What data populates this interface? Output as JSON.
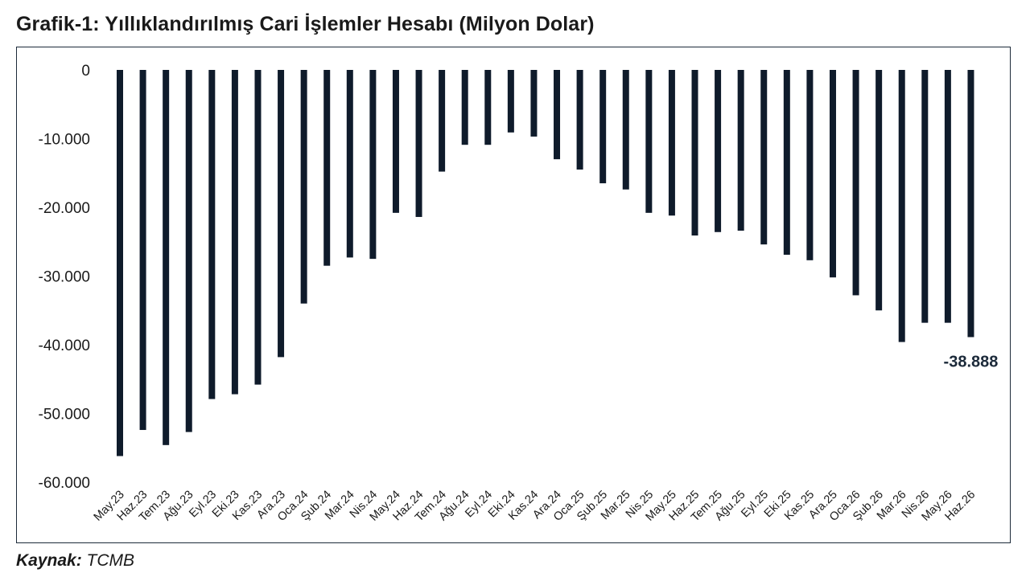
{
  "chart_data": {
    "type": "bar",
    "title": "Grafik-1: Yıllıklandırılmış Cari İşlemler Hesabı (Milyon Dolar)",
    "source_label": "Kaynak:",
    "source_value": "TCMB",
    "categories": [
      "May.23",
      "Haz.23",
      "Tem.23",
      "Ağu.23",
      "Eyl.23",
      "Eki.23",
      "Kas.23",
      "Ara.23",
      "Oca.24",
      "Şub.24",
      "Mar.24",
      "Nis.24",
      "May.24",
      "Haz.24",
      "Tem.24",
      "Ağu.24",
      "Eyl.24",
      "Eki.24",
      "Kas.24",
      "Ara.24",
      "Oca.25",
      "Şub.25",
      "Mar.25",
      "Nis.25",
      "May.25",
      "Haz.25",
      "Tem.25",
      "Ağu.25",
      "Eyl.25",
      "Eki.25",
      "Kas.25",
      "Ara.25",
      "Oca.26",
      "Şub.26",
      "Mar.26",
      "Nis.26",
      "May.26",
      "Haz.26"
    ],
    "values": [
      -56200,
      -52400,
      -54600,
      -52700,
      -47900,
      -47200,
      -45800,
      -41800,
      -34000,
      -28500,
      -27300,
      -27500,
      -20800,
      -21400,
      -14800,
      -10900,
      -10900,
      -9100,
      -9700,
      -13000,
      -14500,
      -16500,
      -17400,
      -20800,
      -21200,
      -24100,
      -23600,
      -23400,
      -25400,
      -26900,
      -27700,
      -30200,
      -32800,
      -35000,
      -39600,
      -36800,
      -36800,
      -38888
    ],
    "ylim": [
      -60000,
      0
    ],
    "yticks": [
      0,
      -10000,
      -20000,
      -30000,
      -40000,
      -50000,
      -60000
    ],
    "ytick_labels": [
      "0",
      "-10.000",
      "-20.000",
      "-30.000",
      "-40.000",
      "-50.000",
      "-60.000"
    ],
    "data_labels": [
      {
        "index": 37,
        "text": "-38.888"
      }
    ],
    "bar_color": "#0f1b2b",
    "grid": false,
    "legend": "none"
  }
}
